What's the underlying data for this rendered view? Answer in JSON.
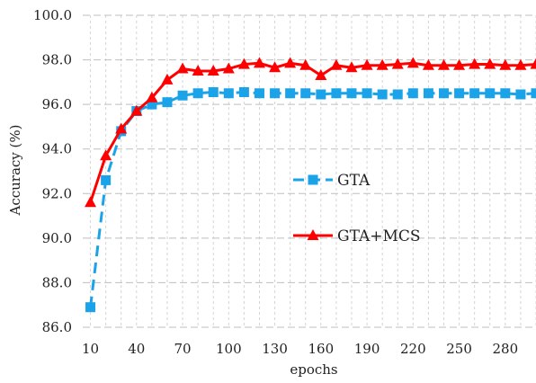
{
  "chart_data": {
    "type": "line",
    "title": "",
    "xlabel": "epochs",
    "ylabel": "Accuracy (%)",
    "ylim": [
      86.0,
      100.0
    ],
    "xlim": [
      5,
      300
    ],
    "grid": true,
    "legend": "center-right",
    "x_tick_labels": [
      "10",
      "40",
      "70",
      "100",
      "130",
      "160",
      "190",
      "220",
      "250",
      "280"
    ],
    "y_tick_labels": [
      "86.0",
      "88.0",
      "90.0",
      "92.0",
      "94.0",
      "96.0",
      "98.0",
      "100.0"
    ],
    "x": [
      10,
      20,
      30,
      40,
      50,
      60,
      70,
      80,
      90,
      100,
      110,
      120,
      130,
      140,
      150,
      160,
      170,
      180,
      190,
      200,
      210,
      220,
      230,
      240,
      250,
      260,
      270,
      280,
      290,
      300
    ],
    "series": [
      {
        "name": "GTA",
        "color": "#1aa3e8",
        "marker": "square",
        "line_style": "dashed",
        "values": [
          86.9,
          92.6,
          94.8,
          95.7,
          96.0,
          96.1,
          96.4,
          96.5,
          96.55,
          96.5,
          96.55,
          96.5,
          96.5,
          96.5,
          96.5,
          96.45,
          96.5,
          96.5,
          96.5,
          96.45,
          96.45,
          96.5,
          96.5,
          96.5,
          96.5,
          96.5,
          96.5,
          96.5,
          96.45,
          96.5
        ]
      },
      {
        "name": "GTA+MCS",
        "color": "#ff0000",
        "marker": "triangle",
        "line_style": "solid",
        "values": [
          91.6,
          93.7,
          94.9,
          95.7,
          96.3,
          97.1,
          97.6,
          97.5,
          97.5,
          97.6,
          97.8,
          97.85,
          97.65,
          97.85,
          97.75,
          97.3,
          97.75,
          97.65,
          97.75,
          97.75,
          97.8,
          97.85,
          97.75,
          97.75,
          97.75,
          97.8,
          97.8,
          97.75,
          97.75,
          97.8
        ]
      }
    ]
  }
}
